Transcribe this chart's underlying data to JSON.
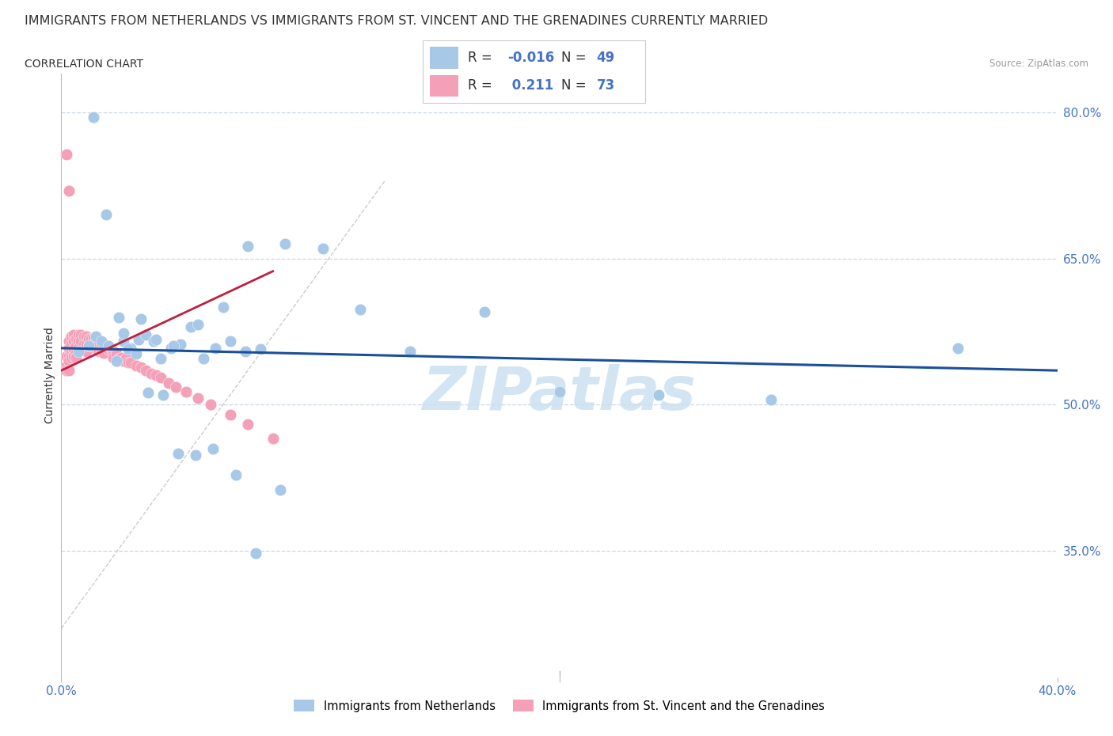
{
  "title": "IMMIGRANTS FROM NETHERLANDS VS IMMIGRANTS FROM ST. VINCENT AND THE GRENADINES CURRENTLY MARRIED",
  "subtitle": "CORRELATION CHART",
  "source": "Source: ZipAtlas.com",
  "ylabel": "Currently Married",
  "legend_label_blue": "Immigrants from Netherlands",
  "legend_label_pink": "Immigrants from St. Vincent and the Grenadines",
  "R_blue": -0.016,
  "N_blue": 49,
  "R_pink": 0.211,
  "N_pink": 73,
  "color_blue": "#a8c8e8",
  "color_pink": "#f4a0b8",
  "trendline_blue": "#1a4f9a",
  "trendline_pink": "#c02040",
  "ref_line_color": "#cccccc",
  "yticks": [
    0.35,
    0.5,
    0.65,
    0.8
  ],
  "ytick_labels": [
    "35.0%",
    "50.0%",
    "65.0%",
    "80.0%"
  ],
  "xmin": 0.0,
  "xmax": 0.4,
  "ymin": 0.22,
  "ymax": 0.84,
  "blue_trend_x": [
    0.0,
    0.4
  ],
  "blue_trend_y": [
    0.558,
    0.535
  ],
  "pink_trend_x0": 0.0,
  "pink_trend_y0": 0.535,
  "pink_trend_slope": 1.2,
  "ref_line_x": [
    0.0,
    0.13
  ],
  "ref_line_y": [
    0.27,
    0.73
  ],
  "blue_x": [
    0.007,
    0.011,
    0.014,
    0.016,
    0.019,
    0.022,
    0.025,
    0.028,
    0.031,
    0.034,
    0.037,
    0.04,
    0.044,
    0.048,
    0.052,
    0.057,
    0.062,
    0.068,
    0.074,
    0.08,
    0.025,
    0.032,
    0.038,
    0.045,
    0.055,
    0.065,
    0.075,
    0.09,
    0.105,
    0.12,
    0.14,
    0.17,
    0.2,
    0.24,
    0.285,
    0.36,
    0.013,
    0.018,
    0.023,
    0.027,
    0.03,
    0.035,
    0.041,
    0.047,
    0.054,
    0.061,
    0.07,
    0.078,
    0.088
  ],
  "blue_y": [
    0.555,
    0.56,
    0.57,
    0.565,
    0.56,
    0.545,
    0.565,
    0.558,
    0.567,
    0.572,
    0.565,
    0.547,
    0.558,
    0.562,
    0.58,
    0.547,
    0.558,
    0.565,
    0.555,
    0.557,
    0.573,
    0.588,
    0.567,
    0.56,
    0.582,
    0.6,
    0.663,
    0.665,
    0.66,
    0.598,
    0.555,
    0.595,
    0.513,
    0.51,
    0.505,
    0.558,
    0.795,
    0.695,
    0.59,
    0.557,
    0.552,
    0.512,
    0.51,
    0.45,
    0.448,
    0.455,
    0.428,
    0.347,
    0.412
  ],
  "pink_x": [
    0.002,
    0.002,
    0.002,
    0.003,
    0.003,
    0.003,
    0.003,
    0.003,
    0.004,
    0.004,
    0.004,
    0.004,
    0.005,
    0.005,
    0.005,
    0.005,
    0.006,
    0.006,
    0.006,
    0.006,
    0.007,
    0.007,
    0.007,
    0.008,
    0.008,
    0.009,
    0.009,
    0.01,
    0.01,
    0.01,
    0.011,
    0.011,
    0.012,
    0.012,
    0.013,
    0.013,
    0.014,
    0.014,
    0.015,
    0.015,
    0.016,
    0.016,
    0.017,
    0.017,
    0.018,
    0.019,
    0.02,
    0.021,
    0.021,
    0.022,
    0.022,
    0.023,
    0.024,
    0.025,
    0.026,
    0.027,
    0.028,
    0.03,
    0.032,
    0.034,
    0.036,
    0.038,
    0.04,
    0.043,
    0.046,
    0.05,
    0.055,
    0.06,
    0.068,
    0.075,
    0.085,
    0.002,
    0.003
  ],
  "pink_y": [
    0.55,
    0.54,
    0.535,
    0.565,
    0.558,
    0.55,
    0.545,
    0.535,
    0.57,
    0.562,
    0.555,
    0.548,
    0.572,
    0.565,
    0.557,
    0.55,
    0.568,
    0.56,
    0.553,
    0.548,
    0.572,
    0.565,
    0.558,
    0.572,
    0.565,
    0.57,
    0.562,
    0.57,
    0.562,
    0.555,
    0.568,
    0.56,
    0.568,
    0.56,
    0.568,
    0.562,
    0.565,
    0.558,
    0.562,
    0.555,
    0.562,
    0.555,
    0.56,
    0.553,
    0.56,
    0.557,
    0.558,
    0.555,
    0.548,
    0.552,
    0.545,
    0.547,
    0.548,
    0.545,
    0.547,
    0.543,
    0.543,
    0.54,
    0.538,
    0.535,
    0.532,
    0.53,
    0.528,
    0.522,
    0.518,
    0.513,
    0.507,
    0.5,
    0.49,
    0.48,
    0.465,
    0.757,
    0.72
  ],
  "watermark": "ZIPatlas",
  "watermark_color": "#cce0f0",
  "background_color": "#ffffff",
  "grid_color": "#c8d8e8",
  "title_color": "#333333",
  "axis_label_color": "#4472c4",
  "title_fontsize": 11.5,
  "subtitle_fontsize": 10
}
